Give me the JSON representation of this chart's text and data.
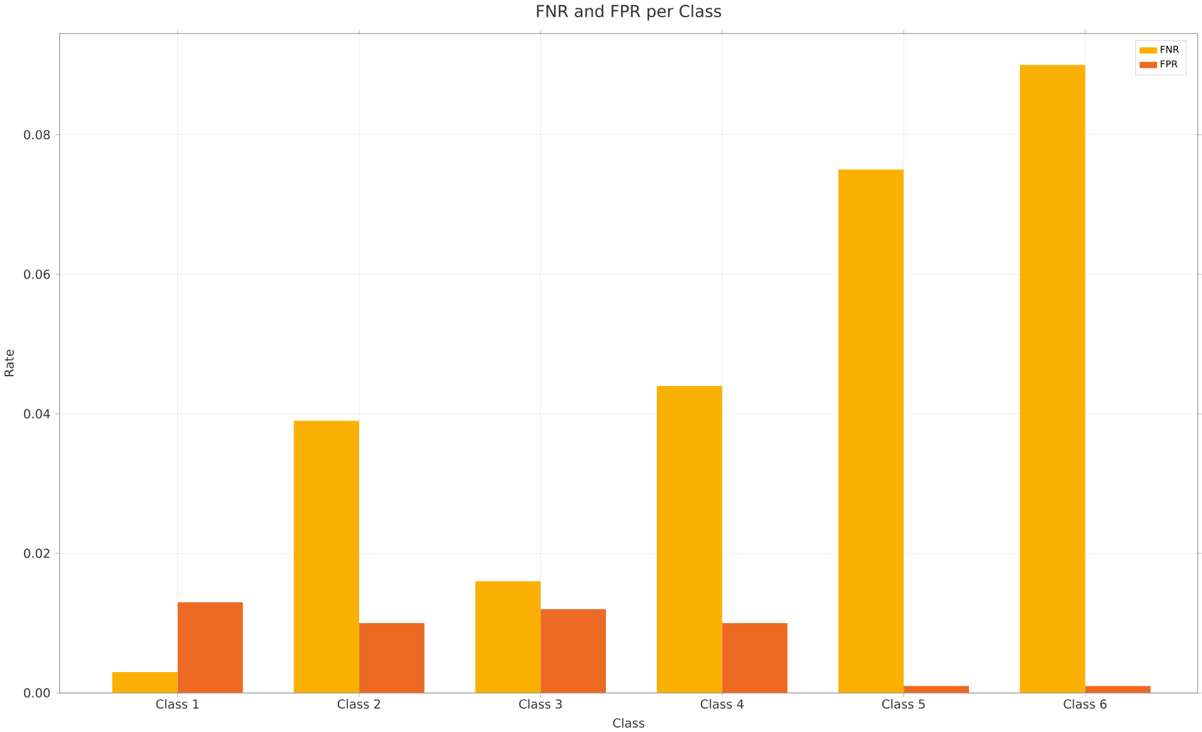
{
  "chart_data": {
    "type": "bar",
    "title": "FNR and FPR per Class",
    "xlabel": "Class",
    "ylabel": "Rate",
    "categories": [
      "Class 1",
      "Class 2",
      "Class 3",
      "Class 4",
      "Class 5",
      "Class 6"
    ],
    "series": [
      {
        "name": "FNR",
        "color": "#fbb004",
        "values": [
          0.003,
          0.039,
          0.016,
          0.044,
          0.075,
          0.09
        ]
      },
      {
        "name": "FPR",
        "color": "#ec6a24",
        "values": [
          0.013,
          0.01,
          0.012,
          0.01,
          0.001,
          0.001
        ]
      }
    ],
    "ylim": [
      0,
      0.0945
    ],
    "yticks": [
      {
        "value": 0,
        "label": "0.00"
      },
      {
        "value": 0.02,
        "label": "0.02"
      },
      {
        "value": 0.04,
        "label": "0.04"
      },
      {
        "value": 0.06,
        "label": "0.06"
      },
      {
        "value": 0.08,
        "label": "0.08"
      }
    ],
    "grid": true,
    "legend": "top right"
  }
}
